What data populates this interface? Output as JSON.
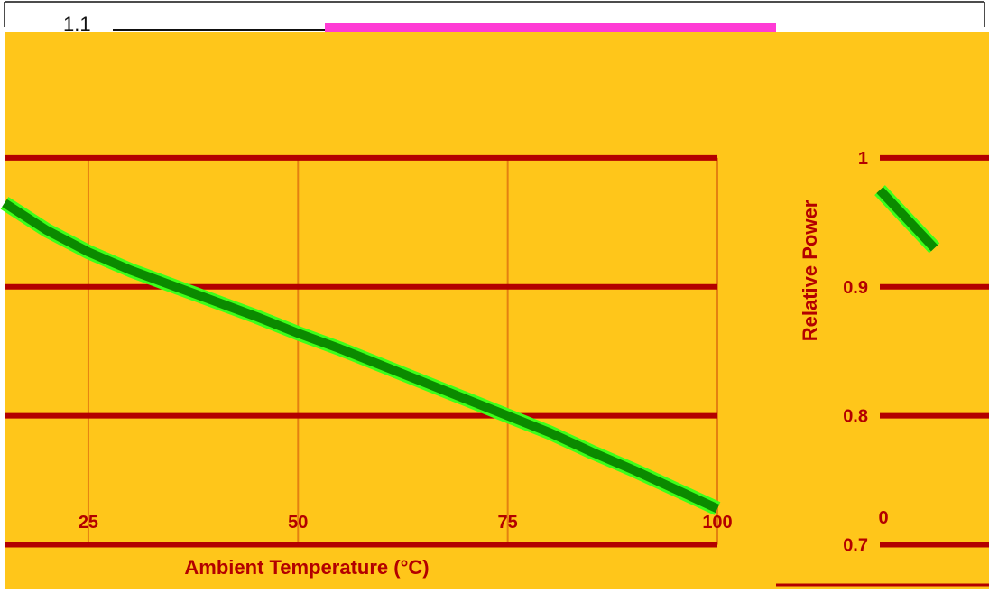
{
  "colors": {
    "background": "#ffc61a",
    "grid": "#b30000",
    "tick": "#b30000",
    "line_dark": "#0b8a00",
    "line_light": "#3dff1a",
    "top_strip": "#ff3bd5"
  },
  "top_fragment": "1.1",
  "chart_data": [
    {
      "type": "line",
      "title": "",
      "xlabel": "Ambient Temperature (°C)",
      "ylabel": "",
      "x_ticks": [
        "25",
        "50",
        "75",
        "100"
      ],
      "xlim": [
        15,
        100
      ],
      "ylim": [
        0.65,
        1.1
      ],
      "grid": true,
      "legend": "none",
      "series": [
        {
          "x": [
            15,
            20,
            25,
            30,
            35,
            40,
            45,
            50,
            55,
            60,
            65,
            70,
            75,
            80,
            85,
            90,
            95,
            100
          ],
          "y": [
            0.965,
            0.944,
            0.927,
            0.913,
            0.901,
            0.889,
            0.877,
            0.864,
            0.852,
            0.839,
            0.826,
            0.813,
            0.8,
            0.787,
            0.772,
            0.758,
            0.743,
            0.728
          ]
        }
      ]
    },
    {
      "type": "line",
      "title": "",
      "xlabel": "",
      "ylabel": "Relative Power",
      "y_ticks": [
        "0.7",
        "0.8",
        "0.9",
        "1"
      ],
      "x_ticks": [
        "0"
      ],
      "xlim": [
        0,
        10
      ],
      "ylim": [
        0.65,
        1.1
      ],
      "grid": true,
      "legend": "none",
      "series": [
        {
          "x": [
            0,
            1,
            2,
            3,
            4,
            5
          ],
          "y": [
            0.975,
            0.966,
            0.957,
            0.948,
            0.939,
            0.93
          ]
        }
      ]
    }
  ]
}
